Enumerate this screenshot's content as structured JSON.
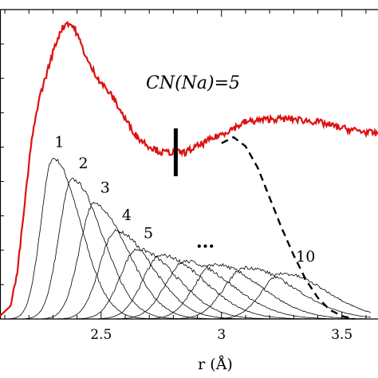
{
  "chart_data": {
    "type": "line",
    "xlabel": "r (Å)",
    "ylabel": "",
    "xlim": [
      2.08,
      3.65
    ],
    "ylim": [
      0,
      1.0
    ],
    "xticks": [
      2.5,
      3,
      3.5
    ],
    "xtick_labels": [
      "2.5",
      "3",
      "3.5"
    ],
    "annotation_cn": "CN(Na)=5",
    "ellipsis": "•••",
    "cutoff_x": 2.81,
    "total_curve": {
      "color": "#dd1111",
      "x": [
        2.08,
        2.12,
        2.15,
        2.18,
        2.21,
        2.24,
        2.27,
        2.3,
        2.33,
        2.36,
        2.39,
        2.42,
        2.45,
        2.5,
        2.55,
        2.6,
        2.65,
        2.7,
        2.75,
        2.8,
        2.85,
        2.9,
        2.95,
        3.0,
        3.05,
        3.1,
        3.2,
        3.3,
        3.4,
        3.5,
        3.65
      ],
      "y": [
        0.01,
        0.04,
        0.14,
        0.36,
        0.58,
        0.72,
        0.8,
        0.88,
        0.95,
        0.98,
        0.96,
        0.9,
        0.84,
        0.78,
        0.73,
        0.66,
        0.6,
        0.57,
        0.55,
        0.55,
        0.55,
        0.57,
        0.59,
        0.61,
        0.63,
        0.65,
        0.66,
        0.66,
        0.65,
        0.63,
        0.61
      ]
    },
    "dashed_curve": {
      "color": "#000000",
      "x": [
        3.0,
        3.05,
        3.1,
        3.15,
        3.2,
        3.25,
        3.3,
        3.35,
        3.4,
        3.45,
        3.5,
        3.55
      ],
      "y": [
        0.58,
        0.6,
        0.57,
        0.5,
        0.4,
        0.3,
        0.21,
        0.13,
        0.07,
        0.03,
        0.01,
        0.0
      ]
    },
    "shell_curves": [
      {
        "label": "1",
        "peak_r": 2.3,
        "height": 0.53,
        "sigma": 0.09
      },
      {
        "label": "2",
        "peak_r": 2.38,
        "height": 0.46,
        "sigma": 0.1
      },
      {
        "label": "3",
        "peak_r": 2.47,
        "height": 0.38,
        "sigma": 0.11
      },
      {
        "label": "4",
        "peak_r": 2.56,
        "height": 0.29,
        "sigma": 0.12
      },
      {
        "label": "5",
        "peak_r": 2.65,
        "height": 0.23,
        "sigma": 0.13
      },
      {
        "label": "",
        "peak_r": 2.75,
        "height": 0.21,
        "sigma": 0.14
      },
      {
        "label": "",
        "peak_r": 2.85,
        "height": 0.19,
        "sigma": 0.15
      },
      {
        "label": "",
        "peak_r": 2.97,
        "height": 0.18,
        "sigma": 0.15
      },
      {
        "label": "",
        "peak_r": 3.1,
        "height": 0.17,
        "sigma": 0.16
      },
      {
        "label": "10",
        "peak_r": 3.25,
        "height": 0.15,
        "sigma": 0.15
      }
    ]
  }
}
